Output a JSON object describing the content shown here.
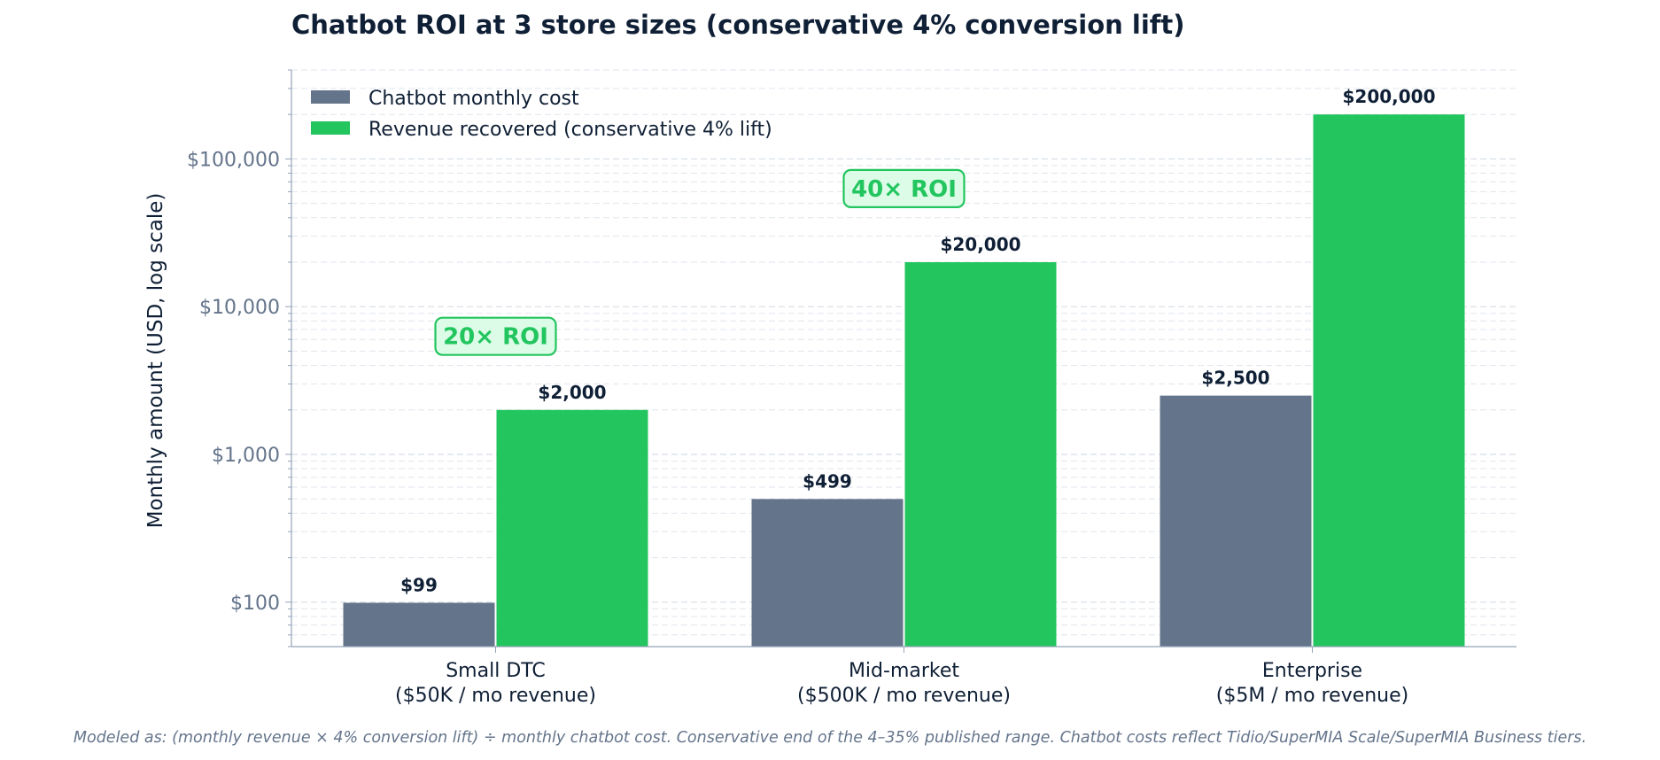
{
  "chart_data": {
    "type": "bar",
    "title": "Chatbot ROI at 3 store sizes (conservative 4% conversion lift)",
    "ylabel": "Monthly amount (USD, log scale)",
    "xlabel": "",
    "yscale": "log",
    "ylim": [
      50,
      400000
    ],
    "yticks": [
      100,
      1000,
      10000,
      100000
    ],
    "ytick_labels": [
      "$100",
      "$1,000",
      "$10,000",
      "$100,000"
    ],
    "grid": true,
    "legend_position": "top-left",
    "categories": [
      [
        "Small DTC",
        "($50K / mo revenue)"
      ],
      [
        "Mid-market",
        "($500K / mo revenue)"
      ],
      [
        "Enterprise",
        "($5M / mo revenue)"
      ]
    ],
    "series": [
      {
        "name": "Chatbot monthly cost",
        "color": "#64748b",
        "values": [
          99,
          499,
          2500
        ],
        "labels": [
          "$99",
          "$499",
          "$2,500"
        ]
      },
      {
        "name": "Revenue recovered (conservative 4% lift)",
        "color": "#22c55e",
        "values": [
          2000,
          20000,
          200000
        ],
        "labels": [
          "$2,000",
          "$20,000",
          "$200,000"
        ]
      }
    ],
    "annotations": [
      {
        "text": "20× ROI",
        "category_index": 0,
        "y": 6300
      },
      {
        "text": "40× ROI",
        "category_index": 1,
        "y": 63000
      }
    ],
    "footnote": "Modeled as: (monthly revenue × 4% conversion lift) ÷ monthly chatbot cost. Conservative end of the 4–35% published range. Chatbot costs reflect Tidio/SuperMIA Scale/SuperMIA Business tiers."
  }
}
